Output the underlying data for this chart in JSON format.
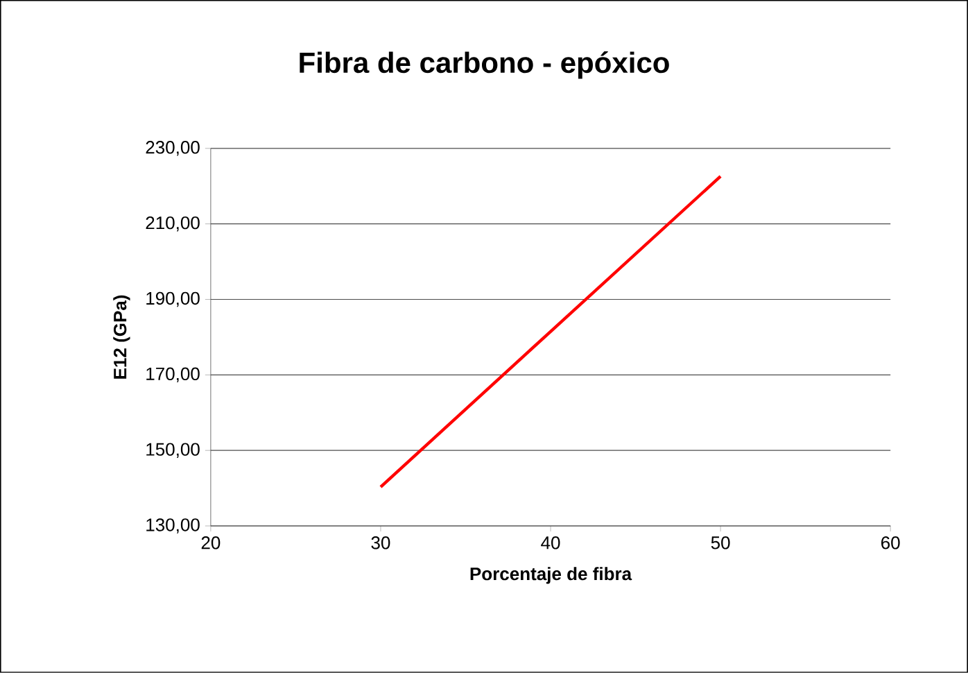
{
  "chart_data": {
    "type": "line",
    "title": "Fibra de carbono - epóxico",
    "xlabel": "Porcentaje de fibra",
    "ylabel": "E12 (GPa)",
    "x": [
      30,
      40,
      50
    ],
    "series": [
      {
        "color": "#ff0000",
        "values": [
          140.3,
          181.5,
          222.6
        ]
      }
    ],
    "xlim": [
      20,
      60
    ],
    "xticks": [
      20,
      30,
      40,
      50,
      60
    ],
    "ylim": [
      130,
      230
    ],
    "yticks": [
      {
        "value": 130,
        "label": "130,00"
      },
      {
        "value": 150,
        "label": "150,00"
      },
      {
        "value": 170,
        "label": "170,00"
      },
      {
        "value": 190,
        "label": "190,00"
      },
      {
        "value": 210,
        "label": "210,00"
      },
      {
        "value": 230,
        "label": "230,00"
      }
    ],
    "grid": "y",
    "marker": "none",
    "line_style": "solid"
  }
}
